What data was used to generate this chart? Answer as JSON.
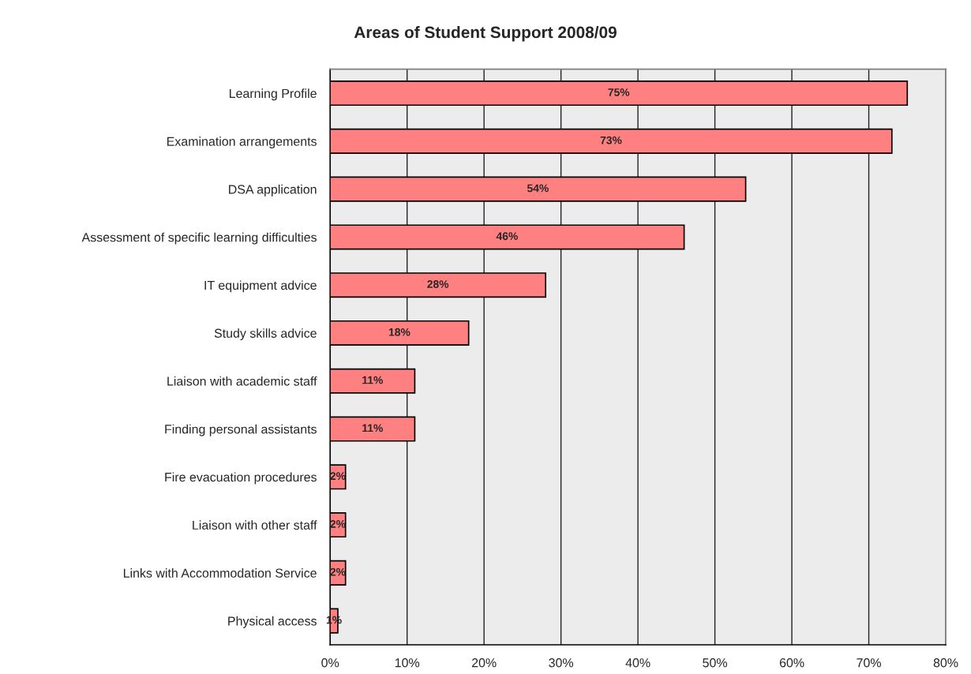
{
  "chart_data": {
    "type": "bar",
    "orientation": "horizontal",
    "title": "Areas of Student Support 2008/09",
    "categories": [
      "Learning Profile",
      "Examination arrangements",
      "DSA application",
      "Assessment of specific learning difficulties",
      "IT equipment advice",
      "Study skills advice",
      "Liaison with academic staff",
      "Finding personal assistants",
      "Fire evacuation procedures",
      "Liaison with other staff",
      "Links with Accommodation Service",
      "Physical access"
    ],
    "values": [
      75,
      73,
      54,
      46,
      28,
      18,
      11,
      11,
      2,
      2,
      2,
      1
    ],
    "value_labels": [
      "75%",
      "73%",
      "54%",
      "46%",
      "28%",
      "18%",
      "11%",
      "11%",
      "2%",
      "2%",
      "2%",
      "1%"
    ],
    "color": "#ff8080",
    "xlim": [
      0,
      80
    ],
    "xticks": [
      {
        "value": 0,
        "label": "0%"
      },
      {
        "value": 10,
        "label": "10%"
      },
      {
        "value": 20,
        "label": "20%"
      },
      {
        "value": 30,
        "label": "30%"
      },
      {
        "value": 40,
        "label": "40%"
      },
      {
        "value": 50,
        "label": "50%"
      },
      {
        "value": 60,
        "label": "60%"
      },
      {
        "value": 70,
        "label": "70%"
      },
      {
        "value": 80,
        "label": "80%"
      }
    ],
    "grid": "x"
  }
}
